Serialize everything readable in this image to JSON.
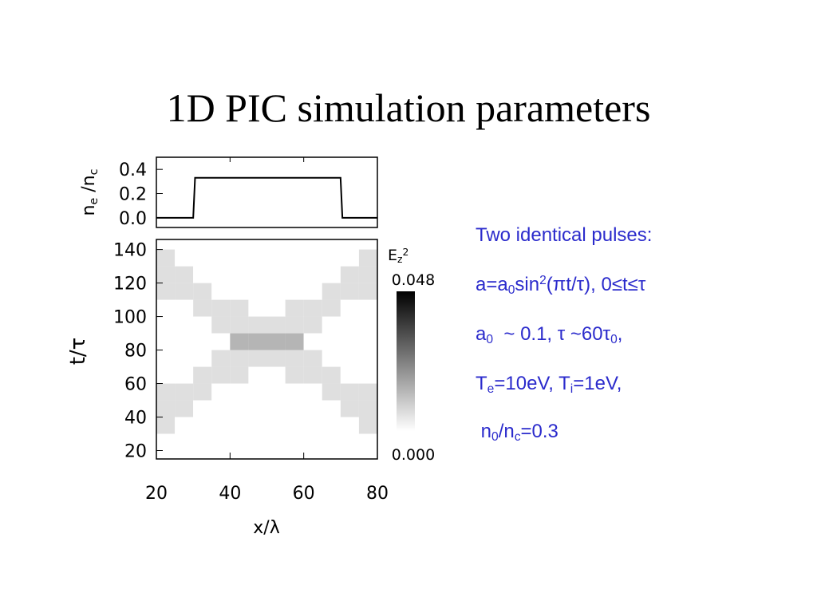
{
  "title": "1D PIC simulation parameters",
  "chart_data": [
    {
      "type": "line",
      "ylabel": [
        {
          "text": "n"
        },
        {
          "text": "e",
          "style": "sub"
        },
        {
          "text": " /n"
        },
        {
          "text": "c",
          "style": "sub"
        }
      ],
      "x": [
        20,
        30,
        30.5,
        70,
        70.5,
        80
      ],
      "values": [
        0,
        0,
        0.33,
        0.33,
        0,
        0
      ],
      "color": "#000000",
      "xlim": [
        20,
        80
      ],
      "xticks": [
        20,
        40,
        60,
        80
      ],
      "ylim": [
        -0.08,
        0.5
      ],
      "yticks": [
        {
          "value": 0,
          "label": "0.0"
        },
        0.2,
        0.4
      ]
    },
    {
      "type": "heatmap",
      "xlabel": "x/λ",
      "ylabel": "t/τ",
      "colorbar_label": [
        {
          "text": "E"
        },
        {
          "text": "z",
          "style": "sub"
        },
        {
          "text": "2",
          "style": "sup"
        }
      ],
      "x": [
        22.5,
        27.5,
        32.5,
        37.5,
        42.5,
        47.5,
        52.5,
        57.5,
        62.5,
        67.5,
        72.5,
        77.5
      ],
      "y": [
        25,
        35,
        45,
        55,
        65,
        75,
        85,
        95,
        105,
        115,
        125,
        135
      ],
      "values": [
        [
          0,
          0,
          0,
          0,
          0,
          0,
          0,
          0,
          0,
          0,
          0,
          0
        ],
        [
          0.006,
          0,
          0,
          0,
          0,
          0,
          0,
          0,
          0,
          0,
          0,
          0.006
        ],
        [
          0.006,
          0.006,
          0,
          0,
          0,
          0,
          0,
          0,
          0,
          0,
          0.006,
          0.006
        ],
        [
          0.006,
          0.006,
          0.006,
          0,
          0,
          0,
          0,
          0,
          0,
          0.006,
          0.006,
          0.006
        ],
        [
          0,
          0,
          0.006,
          0.006,
          0.006,
          0,
          0,
          0.006,
          0.006,
          0.006,
          0,
          0
        ],
        [
          0,
          0,
          0,
          0.006,
          0.006,
          0.006,
          0.006,
          0.006,
          0.006,
          0,
          0,
          0
        ],
        [
          0,
          0,
          0,
          0,
          0.014,
          0.014,
          0.014,
          0.014,
          0,
          0,
          0,
          0
        ],
        [
          0,
          0,
          0,
          0.006,
          0.006,
          0.006,
          0.006,
          0.006,
          0.006,
          0,
          0,
          0
        ],
        [
          0,
          0,
          0.006,
          0.006,
          0.006,
          0,
          0,
          0.006,
          0.006,
          0.006,
          0,
          0
        ],
        [
          0.006,
          0.006,
          0.006,
          0,
          0,
          0,
          0,
          0,
          0,
          0.006,
          0.006,
          0.006
        ],
        [
          0.006,
          0.006,
          0,
          0,
          0,
          0,
          0,
          0,
          0,
          0,
          0.006,
          0.006
        ],
        [
          0.006,
          0,
          0,
          0,
          0,
          0,
          0,
          0,
          0,
          0,
          0,
          0.006
        ]
      ],
      "xlim": [
        20,
        80
      ],
      "xticks": [
        20,
        40,
        60,
        80
      ],
      "ylim": [
        15,
        146
      ],
      "yticks": [
        20,
        40,
        60,
        80,
        100,
        120,
        140
      ],
      "colorbar_lim": [
        0,
        0.048
      ],
      "colorbar_ticks": [
        {
          "value": 0,
          "label": "0.000"
        },
        0.048
      ]
    }
  ],
  "notes": [
    [
      {
        "text": "Two identical pulses:"
      }
    ],
    [
      {
        "text": "a=a"
      },
      {
        "text": "0",
        "style": "sub"
      },
      {
        "text": "sin"
      },
      {
        "text": "2",
        "style": "sup"
      },
      {
        "text": "(πt/τ), 0≤t≤τ"
      }
    ],
    [
      {
        "text": "a"
      },
      {
        "text": "0",
        "style": "sub"
      },
      {
        "text": "  ~ 0.1, τ ~60τ"
      },
      {
        "text": "0",
        "style": "sub"
      },
      {
        "text": ","
      }
    ],
    [
      {
        "text": "T"
      },
      {
        "text": "e",
        "style": "sub"
      },
      {
        "text": "=10eV, T"
      },
      {
        "text": "i",
        "style": "sub"
      },
      {
        "text": "=1eV,"
      }
    ],
    [
      {
        "text": " n"
      },
      {
        "text": "0",
        "style": "sub"
      },
      {
        "text": "/n"
      },
      {
        "text": "c",
        "style": "sub"
      },
      {
        "text": "=0.3"
      }
    ]
  ]
}
